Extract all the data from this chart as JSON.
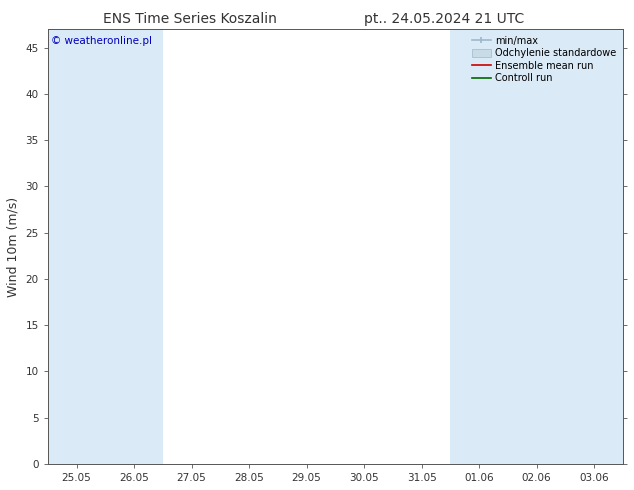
{
  "title": "ENS Time Series Koszalin",
  "subtitle": "pt.. 24.05.2024 21 UTC",
  "ylabel": "Wind 10m (m/s)",
  "watermark": "© weatheronline.pl",
  "ylim": [
    0,
    47
  ],
  "yticks": [
    0,
    5,
    10,
    15,
    20,
    25,
    30,
    35,
    40,
    45
  ],
  "x_labels": [
    "25.05",
    "26.05",
    "27.05",
    "28.05",
    "29.05",
    "30.05",
    "31.05",
    "01.06",
    "02.06",
    "03.06"
  ],
  "n_ticks": 10,
  "shaded_indices": [
    0,
    1,
    7,
    8,
    9
  ],
  "background_color": "#ffffff",
  "band_color": "#daeaf7",
  "legend_labels": [
    "min/max",
    "Odchylenie standardowe",
    "Ensemble mean run",
    "Controll run"
  ],
  "legend_colors": [
    "#9bb8cc",
    "#c8dce8",
    "#cc0000",
    "#006600"
  ],
  "title_fontsize": 10,
  "tick_fontsize": 7.5,
  "ylabel_fontsize": 9,
  "watermark_color": "#0000bb",
  "spine_color": "#555555",
  "right_tick_color": "#999999"
}
